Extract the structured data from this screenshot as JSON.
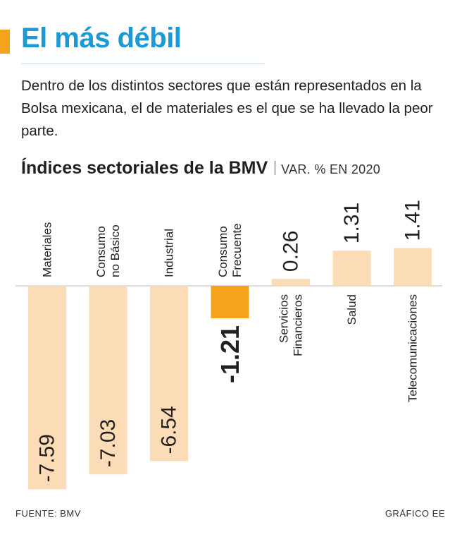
{
  "header": {
    "title": "El más débil",
    "intro": "Dentro de los distintos sectores que están representados en la Bolsa mexicana, el de materiales es el que se ha llevado la peor parte."
  },
  "chart_data": {
    "type": "bar",
    "title": "Índices sectoriales de la BMV",
    "unit": "VAR. % EN 2020",
    "categories": [
      [
        "Materiales"
      ],
      [
        "Consumo",
        "no Básico"
      ],
      [
        "Industrial"
      ],
      [
        "Consumo",
        "Frecuente"
      ],
      [
        "Servicios",
        "Financieros"
      ],
      [
        "Salud"
      ],
      [
        "Telecomunicaciones"
      ]
    ],
    "values": [
      -7.59,
      -7.03,
      -6.54,
      -1.21,
      0.26,
      1.31,
      1.41
    ],
    "value_labels": [
      "-7.59",
      "-7.03",
      "-6.54",
      "-1.21",
      "0.26",
      "1.31",
      "1.41"
    ],
    "highlight_index": 3,
    "colors": {
      "bar": "#fbdcb6",
      "highlight": "#f5a21c",
      "accent": "#1b9ad6"
    },
    "grid": false,
    "legend": "none"
  },
  "footer": {
    "source": "FUENTE: BMV",
    "credit": "GRÁFICO EE"
  }
}
